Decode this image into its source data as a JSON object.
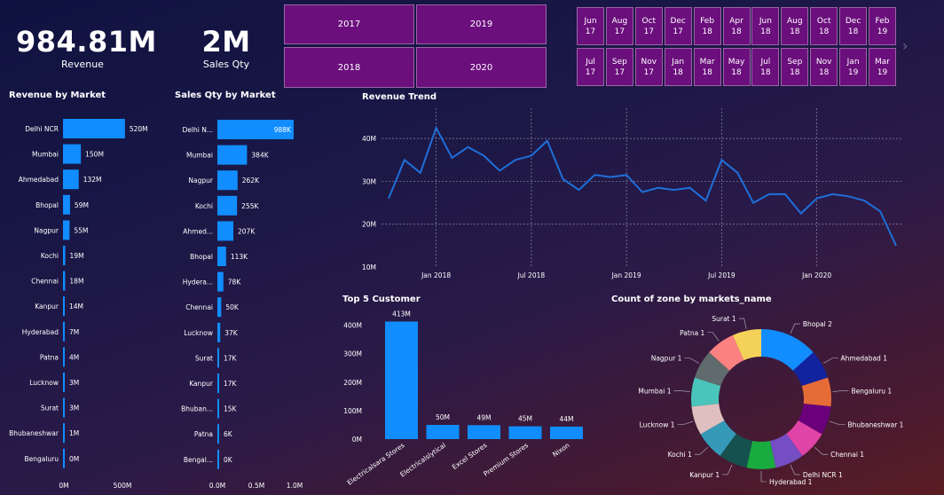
{
  "kpis": {
    "revenue_value": "984.81M",
    "revenue_label": "Revenue",
    "qty_value": "2M",
    "qty_label": "Sales Qty"
  },
  "year_slicer": [
    "2017",
    "2019",
    "2018",
    "2020"
  ],
  "month_slicer": [
    [
      "Jun",
      "17"
    ],
    [
      "Aug",
      "17"
    ],
    [
      "Oct",
      "17"
    ],
    [
      "Dec",
      "17"
    ],
    [
      "Feb",
      "18"
    ],
    [
      "Apr",
      "18"
    ],
    [
      "Jun",
      "18"
    ],
    [
      "Aug",
      "18"
    ],
    [
      "Oct",
      "18"
    ],
    [
      "Dec",
      "18"
    ],
    [
      "Feb",
      "19"
    ],
    [
      "Jul",
      "17"
    ],
    [
      "Sep",
      "17"
    ],
    [
      "Nov",
      "17"
    ],
    [
      "Jan",
      "18"
    ],
    [
      "Mar",
      "18"
    ],
    [
      "May",
      "18"
    ],
    [
      "Jul",
      "18"
    ],
    [
      "Sep",
      "18"
    ],
    [
      "Nov",
      "18"
    ],
    [
      "Jan",
      "19"
    ],
    [
      "Mar",
      "19"
    ]
  ],
  "colors": {
    "bar": "#118dff",
    "line": "#1f6fd8",
    "slicer": "#6b0f7d"
  },
  "chart_data": [
    {
      "type": "bar",
      "orientation": "horizontal",
      "title": "Revenue by Market",
      "categories": [
        "Delhi NCR",
        "Mumbai",
        "Ahmedabad",
        "Bhopal",
        "Nagpur",
        "Kochi",
        "Chennai",
        "Kanpur",
        "Hyderabad",
        "Patna",
        "Lucknow",
        "Surat",
        "Bhubaneshwar",
        "Bengaluru"
      ],
      "values": [
        520,
        150,
        132,
        59,
        55,
        19,
        18,
        14,
        7,
        4,
        3,
        3,
        1,
        0
      ],
      "labels": [
        "520M",
        "150M",
        "132M",
        "59M",
        "55M",
        "19M",
        "18M",
        "14M",
        "7M",
        "4M",
        "3M",
        "3M",
        "1M",
        "0M"
      ],
      "xticks": [
        "0M",
        "500M"
      ],
      "xlim": [
        0,
        700
      ]
    },
    {
      "type": "bar",
      "orientation": "horizontal",
      "title": "Sales Qty by Market",
      "categories": [
        "Delhi N...",
        "Mumbai",
        "Nagpur",
        "Kochi",
        "Ahmed...",
        "Bhopal",
        "Hydera...",
        "Chennai",
        "Lucknow",
        "Surat",
        "Kanpur",
        "Bhuban...",
        "Patna",
        "Bengal..."
      ],
      "values": [
        988,
        384,
        262,
        255,
        207,
        113,
        78,
        50,
        37,
        17,
        17,
        15,
        6,
        0
      ],
      "labels": [
        "988K",
        "384K",
        "262K",
        "255K",
        "207K",
        "113K",
        "78K",
        "50K",
        "37K",
        "17K",
        "17K",
        "15K",
        "6K",
        "0K"
      ],
      "xticks": [
        "0.0M",
        "0.5M",
        "1.0M"
      ],
      "xlim": [
        0,
        1000
      ]
    },
    {
      "type": "line",
      "title": "Revenue Trend",
      "x": [
        "2017-10",
        "2017-11",
        "2017-12",
        "2018-01",
        "2018-02",
        "2018-03",
        "2018-04",
        "2018-05",
        "2018-06",
        "2018-07",
        "2018-08",
        "2018-09",
        "2018-10",
        "2018-11",
        "2018-12",
        "2019-01",
        "2019-02",
        "2019-03",
        "2019-04",
        "2019-05",
        "2019-06",
        "2019-07",
        "2019-08",
        "2019-09",
        "2019-10",
        "2019-11",
        "2019-12",
        "2020-01",
        "2020-02",
        "2020-03",
        "2020-04",
        "2020-05",
        "2020-06"
      ],
      "values": [
        26,
        35,
        32,
        42.5,
        35.5,
        38,
        36,
        32.5,
        35,
        36,
        39.5,
        30.5,
        28,
        31.5,
        31,
        31.5,
        27.5,
        28.5,
        28,
        28.5,
        25.5,
        35,
        32,
        25,
        27,
        27,
        22.5,
        26,
        27,
        26.5,
        25.5,
        23,
        15
      ],
      "yticks": [
        "10M",
        "20M",
        "30M",
        "40M"
      ],
      "xticks": [
        "Jan 2018",
        "Jul 2018",
        "Jan 2019",
        "Jul 2019",
        "Jan 2020"
      ],
      "ylim": [
        10,
        45
      ]
    },
    {
      "type": "bar",
      "title": "Top 5 Customer",
      "categories": [
        "Electricalsara Stores",
        "Electricalslytical",
        "Excel Stores",
        "Premium Stores",
        "Nixon"
      ],
      "values": [
        413,
        50,
        49,
        45,
        44
      ],
      "labels": [
        "413M",
        "50M",
        "49M",
        "45M",
        "44M"
      ],
      "yticks": [
        "0M",
        "100M",
        "200M",
        "300M",
        "400M"
      ],
      "ylim": [
        0,
        430
      ]
    },
    {
      "type": "pie",
      "donut": true,
      "title": "Count of zone by markets_name",
      "slices": [
        {
          "label": "Bhopal 2",
          "value": 2,
          "color": "#118dff"
        },
        {
          "label": "Ahmedabad 1",
          "value": 1,
          "color": "#12239e"
        },
        {
          "label": "Bengaluru 1",
          "value": 1,
          "color": "#e66c37"
        },
        {
          "label": "Bhubaneshwar 1",
          "value": 1,
          "color": "#6b007b"
        },
        {
          "label": "Chennai 1",
          "value": 1,
          "color": "#e044a7"
        },
        {
          "label": "Delhi NCR 1",
          "value": 1,
          "color": "#744ec2"
        },
        {
          "label": "Hyderabad 1",
          "value": 1,
          "color": "#1aab40"
        },
        {
          "label": "Kanpur 1",
          "value": 1,
          "color": "#15514f"
        },
        {
          "label": "Kochi 1",
          "value": 1,
          "color": "#3599b8"
        },
        {
          "label": "Lucknow 1",
          "value": 1,
          "color": "#dfbfbf"
        },
        {
          "label": "Mumbai 1",
          "value": 1,
          "color": "#4ac5bb"
        },
        {
          "label": "Nagpur 1",
          "value": 1,
          "color": "#5f6b6d"
        },
        {
          "label": "Patna 1",
          "value": 1,
          "color": "#fb8281"
        },
        {
          "label": "Surat 1",
          "value": 1,
          "color": "#f4d25a"
        }
      ]
    }
  ]
}
